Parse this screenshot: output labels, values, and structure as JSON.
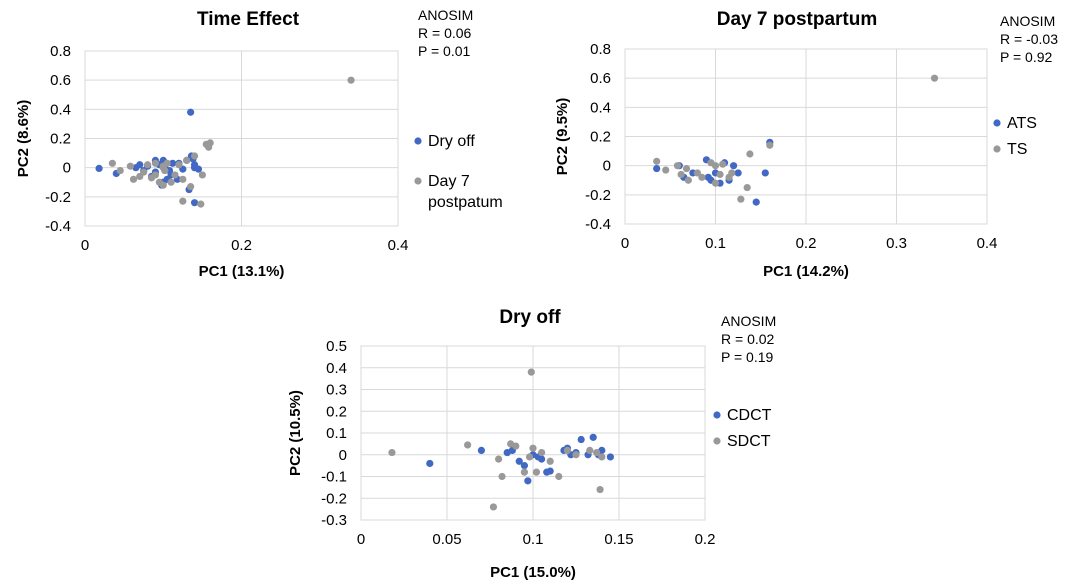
{
  "colors": {
    "blue": "#4169c4",
    "gray": "#999999"
  },
  "chart_data": [
    {
      "type": "scatter",
      "title": "Time Effect",
      "xlabel": "PC1 (13.1%)",
      "ylabel": "PC2 (8.6%)",
      "xlim": [
        0,
        0.4
      ],
      "ylim": [
        -0.4,
        0.8
      ],
      "xticks": [
        0,
        0.2,
        0.4
      ],
      "yticks": [
        -0.4,
        -0.2,
        0,
        0.2,
        0.4,
        0.6,
        0.8
      ],
      "xtick_labels": [
        "0",
        "0.2",
        "0.4"
      ],
      "ytick_labels": [
        "-0.4",
        "-0.2",
        "0",
        "0.2",
        "0.4",
        "0.6",
        "0.8"
      ],
      "annotation": [
        "ANOSIM",
        "R = 0.06",
        "P = 0.01"
      ],
      "legend_position": "right",
      "series": [
        {
          "name": "Dry off",
          "color": "#4169c4",
          "x": [
            0.018,
            0.04,
            0.065,
            0.07,
            0.075,
            0.08,
            0.085,
            0.09,
            0.095,
            0.1,
            0.1,
            0.102,
            0.105,
            0.108,
            0.11,
            0.112,
            0.118,
            0.12,
            0.125,
            0.13,
            0.133,
            0.135,
            0.138,
            0.14,
            0.14,
            0.136,
            0.14,
            0.145,
            0.09,
            0.098
          ],
          "y": [
            -0.005,
            -0.04,
            0.0,
            0.02,
            -0.02,
            0.01,
            -0.06,
            -0.03,
            0.02,
            0.05,
            -0.1,
            0.0,
            -0.08,
            -0.02,
            -0.05,
            0.03,
            -0.08,
            0.03,
            -0.01,
            0.05,
            -0.15,
            0.38,
            0.06,
            0.0,
            -0.24,
            0.08,
            0.02,
            -0.01,
            0.05,
            -0.12
          ]
        },
        {
          "name": "Day 7 postpatum",
          "color": "#999999",
          "x": [
            0.035,
            0.045,
            0.058,
            0.062,
            0.07,
            0.075,
            0.08,
            0.085,
            0.09,
            0.095,
            0.1,
            0.1,
            0.102,
            0.105,
            0.11,
            0.115,
            0.12,
            0.125,
            0.13,
            0.135,
            0.14,
            0.15,
            0.155,
            0.158,
            0.16,
            0.148,
            0.125,
            0.34,
            0.09,
            0.1
          ],
          "y": [
            0.03,
            -0.02,
            0.01,
            -0.08,
            -0.06,
            -0.03,
            0.02,
            -0.07,
            -0.05,
            -0.1,
            0.0,
            -0.12,
            -0.02,
            0.03,
            -0.1,
            -0.05,
            0.02,
            -0.08,
            0.05,
            -0.13,
            0.08,
            -0.05,
            0.16,
            0.14,
            0.17,
            -0.25,
            -0.23,
            0.6,
            0.03,
            0.01
          ]
        }
      ]
    },
    {
      "type": "scatter",
      "title": "Day 7 postpartum",
      "xlabel": "PC1 (14.2%)",
      "ylabel": "PC2 (9.5%)",
      "xlim": [
        0,
        0.4
      ],
      "ylim": [
        -0.4,
        0.8
      ],
      "xticks": [
        0,
        0.1,
        0.2,
        0.3,
        0.4
      ],
      "yticks": [
        -0.4,
        -0.2,
        0,
        0.2,
        0.4,
        0.6,
        0.8
      ],
      "xtick_labels": [
        "0",
        "0.1",
        "0.2",
        "0.3",
        "0.4"
      ],
      "ytick_labels": [
        "-0.4",
        "-0.2",
        "0",
        "0.2",
        "0.4",
        "0.6",
        "0.8"
      ],
      "annotation": [
        "ANOSIM",
        "R = -0.03",
        "P = 0.92"
      ],
      "legend_position": "right",
      "series": [
        {
          "name": "ATS",
          "color": "#4169c4",
          "x": [
            0.035,
            0.06,
            0.065,
            0.075,
            0.09,
            0.092,
            0.095,
            0.1,
            0.105,
            0.11,
            0.115,
            0.12,
            0.125,
            0.145,
            0.155,
            0.16
          ],
          "y": [
            -0.02,
            0.0,
            -0.08,
            -0.05,
            0.04,
            -0.08,
            -0.1,
            -0.05,
            -0.12,
            0.02,
            -0.1,
            0.0,
            -0.05,
            -0.25,
            -0.05,
            0.16
          ]
        },
        {
          "name": "TS",
          "color": "#999999",
          "x": [
            0.035,
            0.045,
            0.058,
            0.062,
            0.068,
            0.07,
            0.08,
            0.085,
            0.095,
            0.1,
            0.1,
            0.105,
            0.108,
            0.115,
            0.118,
            0.128,
            0.135,
            0.138,
            0.16,
            0.342
          ],
          "y": [
            0.03,
            -0.03,
            0.0,
            -0.06,
            -0.02,
            -0.1,
            -0.05,
            -0.08,
            0.02,
            0.0,
            -0.12,
            -0.06,
            0.01,
            -0.08,
            -0.05,
            -0.23,
            -0.15,
            0.08,
            0.14,
            0.6
          ]
        }
      ]
    },
    {
      "type": "scatter",
      "title": "Dry off",
      "xlabel": "PC1 (15.0%)",
      "ylabel": "PC2 (10.5%)",
      "xlim": [
        0,
        0.2
      ],
      "ylim": [
        -0.3,
        0.5
      ],
      "xticks": [
        0,
        0.05,
        0.1,
        0.15,
        0.2
      ],
      "yticks": [
        -0.3,
        -0.2,
        -0.1,
        0,
        0.1,
        0.2,
        0.3,
        0.4,
        0.5
      ],
      "xtick_labels": [
        "0",
        "0.05",
        "0.1",
        "0.15",
        "0.2"
      ],
      "ytick_labels": [
        "-0.3",
        "-0.2",
        "-0.1",
        "0",
        "0.1",
        "0.2",
        "0.3",
        "0.4",
        "0.5"
      ],
      "annotation": [
        "ANOSIM",
        "R = 0.02",
        "P = 0.19"
      ],
      "legend_position": "right",
      "series": [
        {
          "name": "CDCT",
          "color": "#4169c4",
          "x": [
            0.04,
            0.07,
            0.085,
            0.088,
            0.092,
            0.095,
            0.097,
            0.1,
            0.103,
            0.105,
            0.108,
            0.11,
            0.118,
            0.12,
            0.122,
            0.125,
            0.128,
            0.132,
            0.135,
            0.138,
            0.14,
            0.145
          ],
          "y": [
            -0.04,
            0.02,
            0.01,
            0.02,
            -0.03,
            -0.05,
            -0.12,
            0.0,
            -0.01,
            -0.02,
            -0.08,
            -0.075,
            0.02,
            0.03,
            0.0,
            0.01,
            0.07,
            0.0,
            0.08,
            0.0,
            0.02,
            -0.01
          ]
        },
        {
          "name": "SDCT",
          "color": "#999999",
          "x": [
            0.018,
            0.062,
            0.077,
            0.08,
            0.082,
            0.087,
            0.09,
            0.095,
            0.098,
            0.099,
            0.1,
            0.102,
            0.105,
            0.11,
            0.115,
            0.12,
            0.125,
            0.133,
            0.137,
            0.139,
            0.14
          ],
          "y": [
            0.01,
            0.045,
            -0.24,
            -0.02,
            -0.1,
            0.05,
            0.04,
            -0.08,
            -0.01,
            0.38,
            0.03,
            -0.08,
            0.01,
            -0.03,
            -0.1,
            0.02,
            0.0,
            0.02,
            0.01,
            -0.16,
            -0.01
          ]
        }
      ]
    }
  ]
}
